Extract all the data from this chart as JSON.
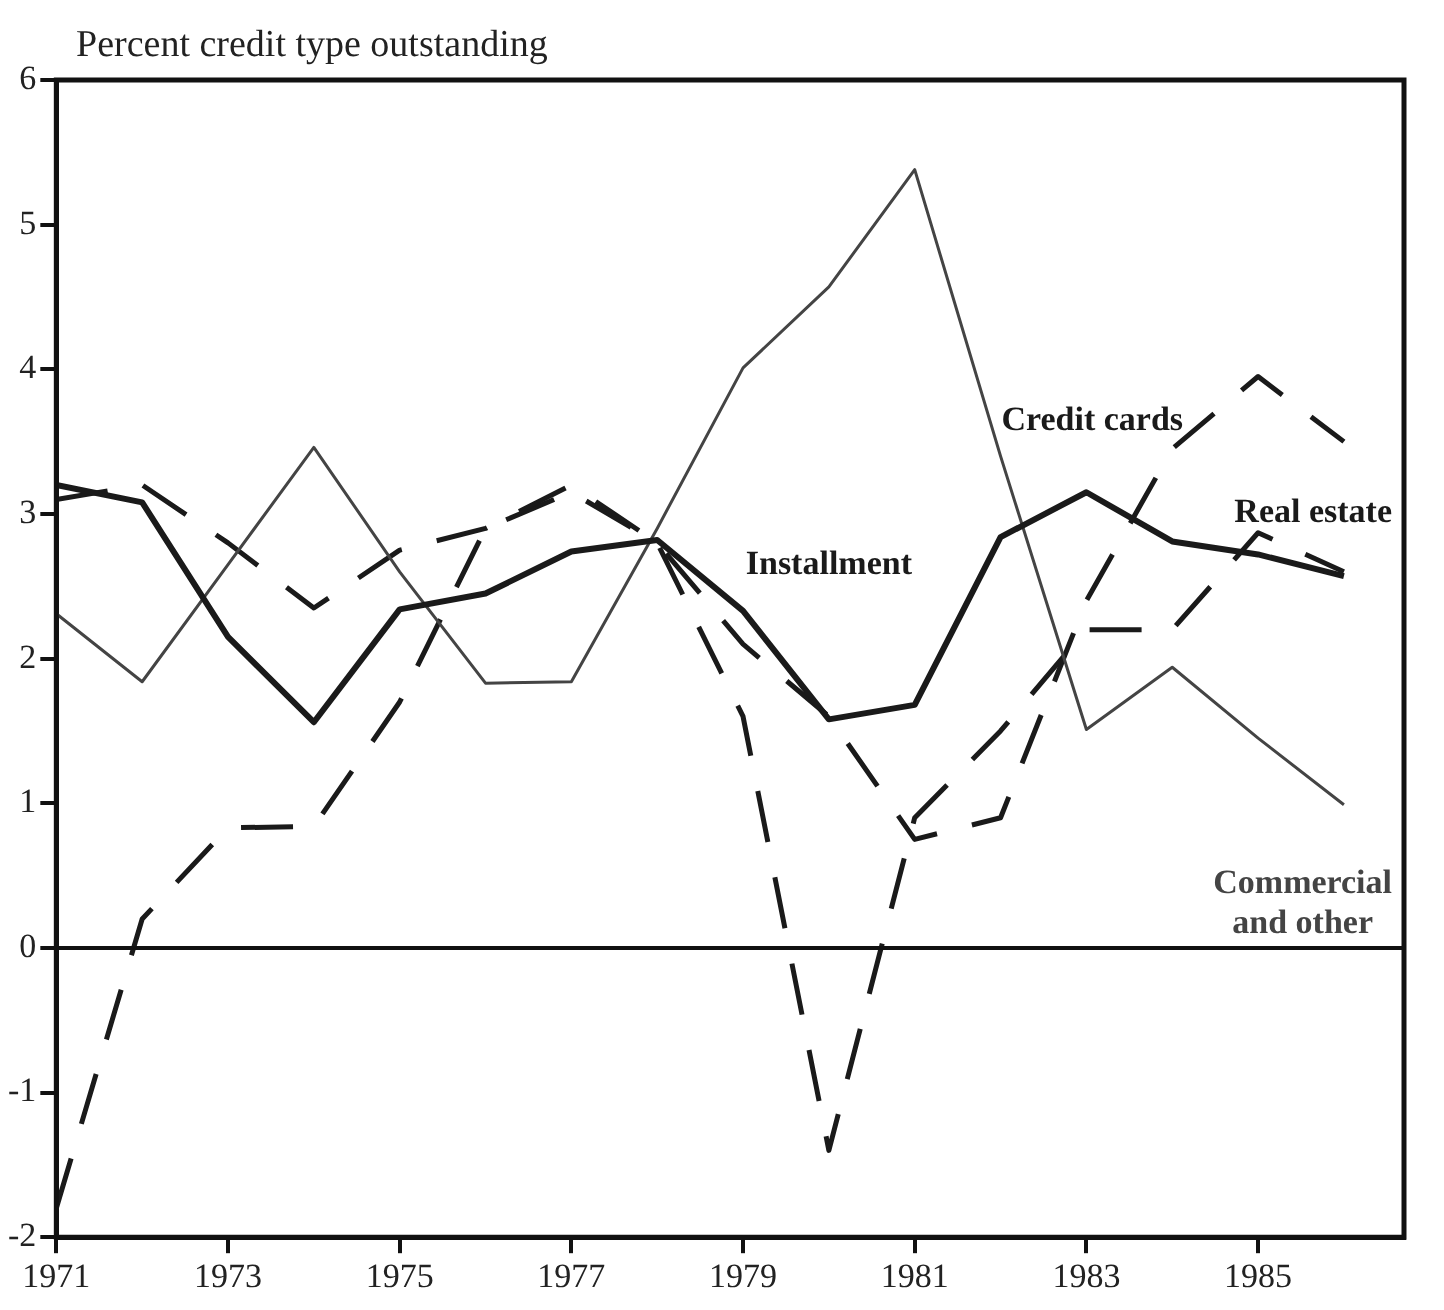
{
  "chart_data": {
    "type": "line",
    "ylabel": "Percent credit type outstanding",
    "x": [
      1971,
      1972,
      1973,
      1974,
      1975,
      1976,
      1977,
      1978,
      1979,
      1980,
      1981,
      1982,
      1983,
      1984,
      1985,
      1986
    ],
    "series": [
      {
        "name": "Installment",
        "color": "#1a1a1a",
        "line_style": "solid",
        "values": [
          3.2,
          3.08,
          2.15,
          1.56,
          2.34,
          2.45,
          2.74,
          2.82,
          2.33,
          1.58,
          1.68,
          2.84,
          3.15,
          2.81,
          2.72,
          2.57
        ]
      },
      {
        "name": "Commercial and other",
        "color": "#444444",
        "line_style": "solid",
        "values": [
          2.31,
          1.84,
          2.65,
          3.46,
          2.6,
          1.83,
          1.84,
          2.9,
          4.01,
          4.57,
          5.38,
          3.4,
          1.51,
          1.94,
          1.45,
          0.99
        ]
      },
      {
        "name": "Credit cards",
        "color": "#1a1a1a",
        "line_style": "dashed",
        "values": [
          3.1,
          3.2,
          2.8,
          2.35,
          2.75,
          2.9,
          3.2,
          2.8,
          2.1,
          1.6,
          0.75,
          0.9,
          2.4,
          3.45,
          3.95,
          3.5
        ]
      },
      {
        "name": "Real estate",
        "color": "#1a1a1a",
        "line_style": "dashed",
        "values": [
          -1.8,
          0.2,
          0.83,
          0.84,
          1.7,
          2.9,
          3.15,
          2.8,
          1.6,
          -1.4,
          0.9,
          1.5,
          2.2,
          2.2,
          2.87,
          2.6
        ]
      }
    ],
    "xlim": [
      1971,
      1986.7
    ],
    "xticks": [
      1971,
      1973,
      1975,
      1977,
      1979,
      1981,
      1983,
      1985
    ],
    "ylim": [
      -2,
      6
    ],
    "yticks": [
      -2,
      -1,
      0,
      1,
      2,
      3,
      4,
      5,
      6
    ],
    "ref_lines": [
      {
        "axis": "y",
        "value": 0
      }
    ],
    "grid": false,
    "legend": false,
    "marker": "none"
  }
}
